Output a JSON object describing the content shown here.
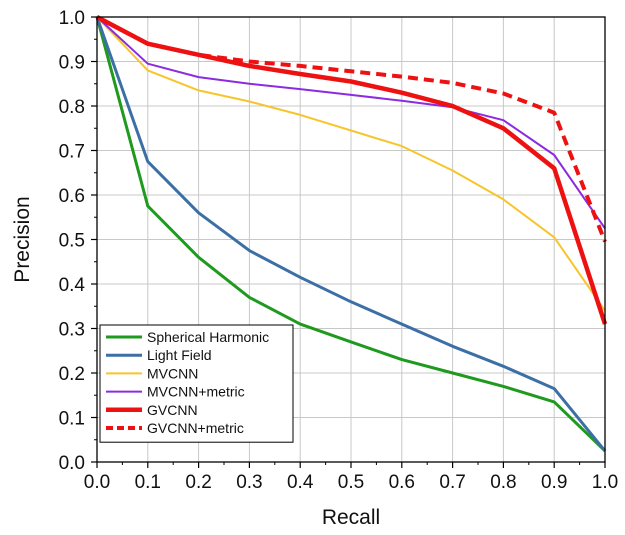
{
  "chart_data": {
    "type": "line",
    "xlabel": "Recall",
    "ylabel": "Precision",
    "xlim": [
      0,
      1
    ],
    "ylim": [
      0,
      1
    ],
    "x_ticks": [
      "0.0",
      "0.1",
      "0.2",
      "0.3",
      "0.4",
      "0.5",
      "0.6",
      "0.7",
      "0.8",
      "0.9",
      "1.0"
    ],
    "y_ticks": [
      "0.0",
      "0.1",
      "0.2",
      "0.3",
      "0.4",
      "0.5",
      "0.6",
      "0.7",
      "0.8",
      "0.9",
      "1.0"
    ],
    "grid": true,
    "legend_position": "bottom-left",
    "x": [
      0,
      0.1,
      0.2,
      0.3,
      0.4,
      0.5,
      0.6,
      0.7,
      0.8,
      0.9,
      1.0
    ],
    "series": [
      {
        "name": "Spherical Harmonic",
        "color": "#1f9a1f",
        "width": 3,
        "dash": "",
        "values": [
          1.0,
          0.575,
          0.46,
          0.37,
          0.31,
          0.27,
          0.23,
          0.2,
          0.17,
          0.135,
          0.025
        ]
      },
      {
        "name": "Light Field",
        "color": "#3c6fa6",
        "width": 3,
        "dash": "",
        "values": [
          1.0,
          0.675,
          0.56,
          0.475,
          0.415,
          0.36,
          0.31,
          0.26,
          0.215,
          0.165,
          0.025
        ]
      },
      {
        "name": "MVCNN",
        "color": "#f7c52b",
        "width": 2,
        "dash": "",
        "values": [
          1.0,
          0.88,
          0.835,
          0.81,
          0.78,
          0.745,
          0.71,
          0.655,
          0.59,
          0.505,
          0.34
        ]
      },
      {
        "name": "MVCNN+metric",
        "color": "#8b2be2",
        "width": 2,
        "dash": "",
        "values": [
          1.0,
          0.895,
          0.865,
          0.85,
          0.838,
          0.825,
          0.812,
          0.797,
          0.768,
          0.69,
          0.525
        ]
      },
      {
        "name": "GVCNN",
        "color": "#ee1111",
        "width": 4.5,
        "dash": "",
        "values": [
          1.0,
          0.94,
          0.915,
          0.89,
          0.872,
          0.855,
          0.83,
          0.8,
          0.75,
          0.66,
          0.31
        ]
      },
      {
        "name": "GVCNN+metric",
        "color": "#ee1111",
        "width": 4,
        "dash": "10,6",
        "values": [
          1.0,
          0.94,
          0.915,
          0.9,
          0.89,
          0.878,
          0.866,
          0.852,
          0.828,
          0.785,
          0.495
        ]
      }
    ]
  }
}
